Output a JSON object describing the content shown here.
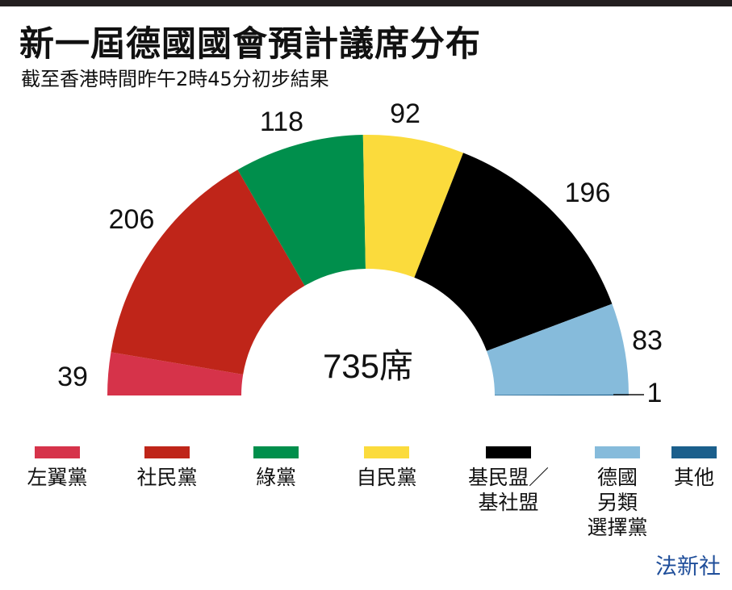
{
  "chart_data": {
    "type": "pie",
    "title": "新一屆德國國會預計議席分布",
    "subtitle": "截至香港時間昨午2時45分初步結果",
    "center_label": "735席",
    "categories": [
      "左翼黨",
      "社民黨",
      "綠黨",
      "自民黨",
      "基民盟／基社盟",
      "德國另類選擇黨",
      "其他"
    ],
    "legend_lines": [
      [
        "左翼黨"
      ],
      [
        "社民黨"
      ],
      [
        "綠黨"
      ],
      [
        "自民黨"
      ],
      [
        "基民盟／",
        "基社盟"
      ],
      [
        "德國",
        "另類",
        "選擇黨"
      ],
      [
        "其他"
      ]
    ],
    "values": [
      39,
      206,
      118,
      92,
      196,
      83,
      1
    ],
    "colors": [
      "#d6334a",
      "#bf2519",
      "#008f4c",
      "#fbdb3c",
      "#000000",
      "#86bbdb",
      "#1b5f8c"
    ],
    "legend_placement": "bottom"
  },
  "source": "法新社"
}
